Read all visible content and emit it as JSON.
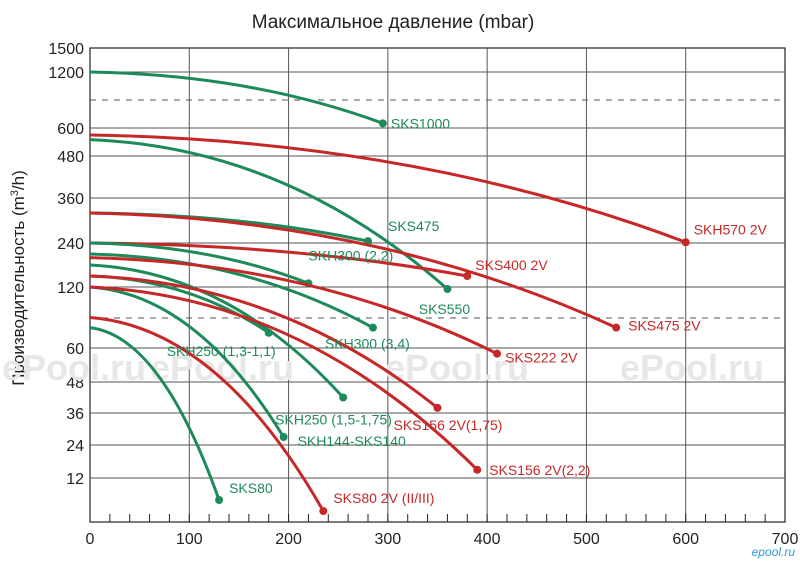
{
  "chart_data": {
    "type": "line",
    "title": "Максимальное давление (mbar)",
    "ylabel_main": "Производительность (m",
    "ylabel_sup": "3",
    "ylabel_end": "/h)",
    "xlim": [
      0,
      700
    ],
    "x_ticks": [
      "0",
      "100",
      "200",
      "300",
      "400",
      "500",
      "600",
      "700"
    ],
    "y_ticks": [
      "1500",
      "1200",
      "600",
      "480",
      "360",
      "240",
      "120",
      "60",
      "48",
      "36",
      "24",
      "12"
    ],
    "watermark": "ePool.ru",
    "brand": "epool.ru",
    "colors": {
      "green": "#1e8a5a",
      "red": "#c62828"
    },
    "series": [
      {
        "name": "SKS1000",
        "color": "green",
        "x": [
          0,
          295
        ],
        "y": [
          1200,
          650
        ],
        "label": "SKS1000"
      },
      {
        "name": "SKH570 2V",
        "color": "red",
        "x": [
          0,
          600
        ],
        "y": [
          570,
          242
        ],
        "label": "SKH570 2V"
      },
      {
        "name": "SKS550",
        "color": "green",
        "x": [
          0,
          360
        ],
        "y": [
          550,
          118
        ],
        "label": "SKS550"
      },
      {
        "name": "SKS475",
        "color": "green",
        "x": [
          0,
          280
        ],
        "y": [
          320,
          245
        ],
        "label": "SKS475"
      },
      {
        "name": "SKS475 2V",
        "color": "red",
        "x": [
          0,
          530
        ],
        "y": [
          320,
          80
        ],
        "label": "SKS475 2V"
      },
      {
        "name": "SKS400 2V",
        "color": "red",
        "x": [
          0,
          380
        ],
        "y": [
          240,
          150
        ],
        "label": "SKS400 2V"
      },
      {
        "name": "SKH300 (2,2)",
        "color": "green",
        "x": [
          0,
          220
        ],
        "y": [
          240,
          130
        ],
        "label": "SKH300 (2,2)"
      },
      {
        "name": "SKH300 (3,4)",
        "color": "green",
        "x": [
          0,
          285
        ],
        "y": [
          210,
          80
        ],
        "label": "SKH300 (3,4)"
      },
      {
        "name": "SKS222 2V",
        "color": "red",
        "x": [
          0,
          410
        ],
        "y": [
          200,
          58
        ],
        "label": "SKS222 2V"
      },
      {
        "name": "SKH250 (1,3-1,1)",
        "color": "green",
        "x": [
          0,
          180
        ],
        "y": [
          150,
          75
        ],
        "label": "SKH250 (1,3-1,1)"
      },
      {
        "name": "SKH250 (1,5-1,75)",
        "color": "green",
        "x": [
          0,
          255
        ],
        "y": [
          180,
          42
        ],
        "label": "SKH250 (1,5-1,75)"
      },
      {
        "name": "SKS156 2V(1,75)",
        "color": "red",
        "x": [
          0,
          350
        ],
        "y": [
          150,
          38
        ],
        "label": "SKS156 2V(1,75)"
      },
      {
        "name": "SKH144-SKS140",
        "color": "green",
        "x": [
          0,
          195
        ],
        "y": [
          120,
          27
        ],
        "label": "SKH144-SKS140"
      },
      {
        "name": "SKS156 2V(2,2)",
        "color": "red",
        "x": [
          0,
          390
        ],
        "y": [
          120,
          15
        ],
        "label": "SKS156 2V(2,2)"
      },
      {
        "name": "SKS80",
        "color": "green",
        "x": [
          0,
          130
        ],
        "y": [
          80,
          6
        ],
        "label": "SKS80"
      },
      {
        "name": "SKS80 2V (II/III)",
        "color": "red",
        "x": [
          0,
          235
        ],
        "y": [
          90,
          3
        ],
        "label": "SKS80 2V (II/III)"
      }
    ]
  }
}
